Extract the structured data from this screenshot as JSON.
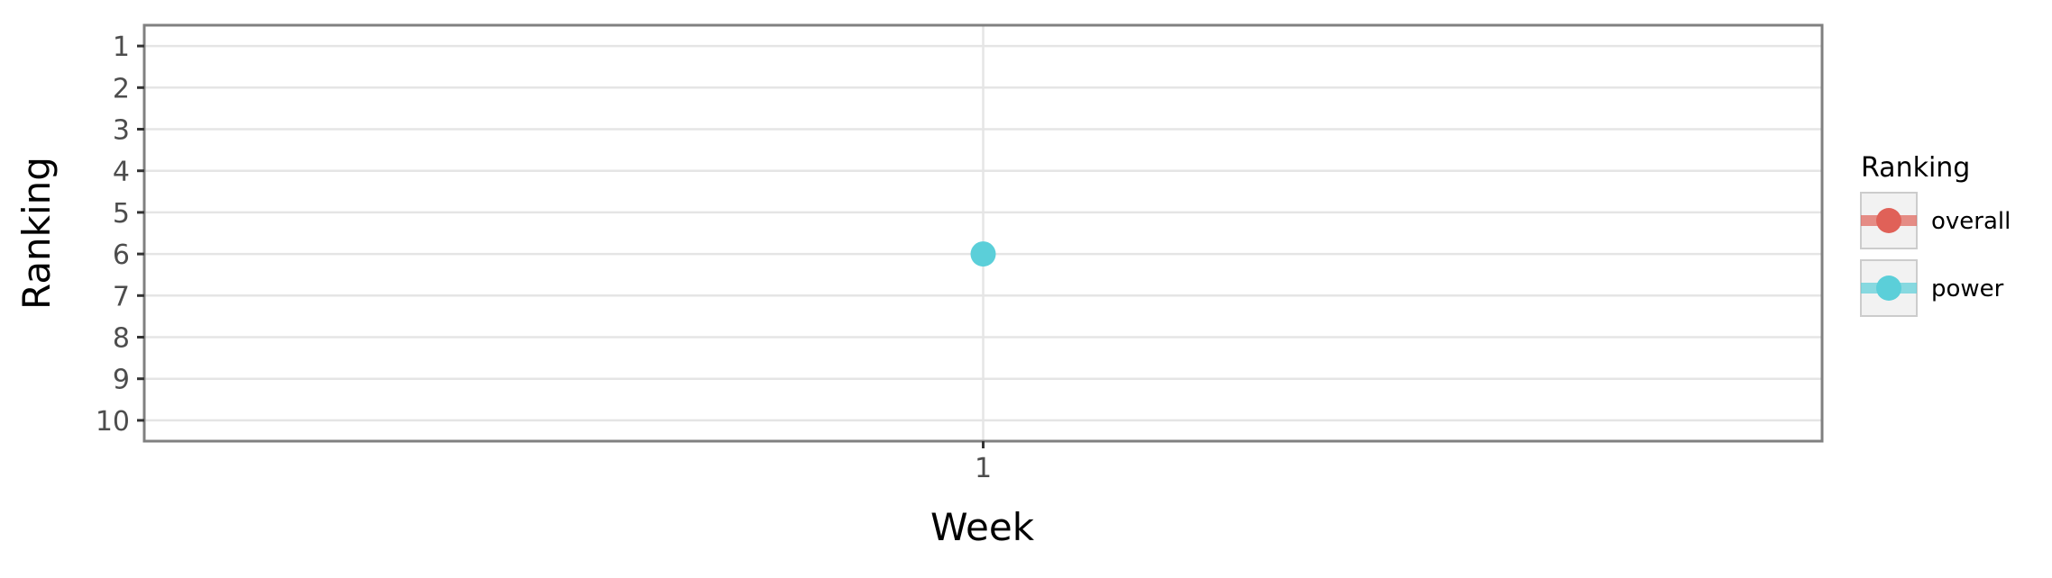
{
  "chart_data": {
    "type": "line",
    "title": "",
    "xlabel": "Week",
    "ylabel": "Ranking",
    "x_categories": [
      "1"
    ],
    "y_ticks": [
      1,
      2,
      3,
      4,
      5,
      6,
      7,
      8,
      9,
      10
    ],
    "ylim": [
      10.5,
      0.5
    ],
    "y_reversed": true,
    "grid": true,
    "legend": {
      "title": "Ranking",
      "placement": "right",
      "entries": [
        "overall",
        "power"
      ]
    },
    "series": [
      {
        "name": "overall",
        "color": "#e06158",
        "x": [
          "1"
        ],
        "y": [
          null
        ]
      },
      {
        "name": "power",
        "color": "#5bcfd9",
        "x": [
          "1"
        ],
        "y": [
          6
        ]
      }
    ]
  }
}
